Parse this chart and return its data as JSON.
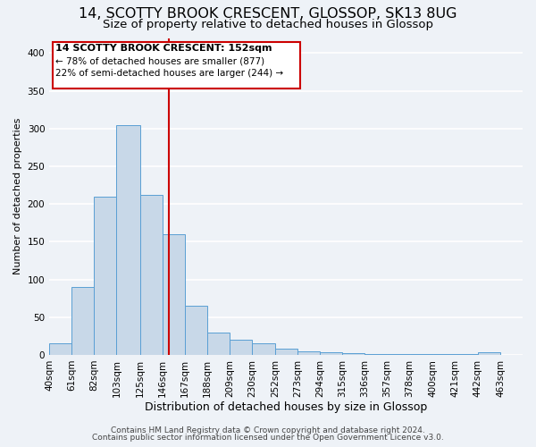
{
  "title": "14, SCOTTY BROOK CRESCENT, GLOSSOP, SK13 8UG",
  "subtitle": "Size of property relative to detached houses in Glossop",
  "xlabel": "Distribution of detached houses by size in Glossop",
  "ylabel": "Number of detached properties",
  "bar_left_edges": [
    40,
    61,
    82,
    103,
    125,
    146,
    167,
    188,
    209,
    230,
    252,
    273,
    294,
    315,
    336,
    357,
    378,
    400,
    421,
    442
  ],
  "bar_widths": [
    21,
    21,
    21,
    22,
    21,
    21,
    21,
    21,
    21,
    22,
    21,
    21,
    21,
    21,
    21,
    21,
    22,
    21,
    21,
    21
  ],
  "bar_heights": [
    15,
    90,
    210,
    305,
    212,
    160,
    65,
    30,
    20,
    15,
    8,
    5,
    3,
    2,
    1,
    1,
    1,
    1,
    1,
    3
  ],
  "bar_facecolor": "#c8d8e8",
  "bar_edgecolor": "#5a9fd4",
  "vline_x": 152,
  "vline_color": "#cc0000",
  "ylim": [
    0,
    420
  ],
  "yticks": [
    0,
    50,
    100,
    150,
    200,
    250,
    300,
    350,
    400
  ],
  "xtick_labels": [
    "40sqm",
    "61sqm",
    "82sqm",
    "103sqm",
    "125sqm",
    "146sqm",
    "167sqm",
    "188sqm",
    "209sqm",
    "230sqm",
    "252sqm",
    "273sqm",
    "294sqm",
    "315sqm",
    "336sqm",
    "357sqm",
    "378sqm",
    "400sqm",
    "421sqm",
    "442sqm",
    "463sqm"
  ],
  "xtick_positions": [
    40,
    61,
    82,
    103,
    125,
    146,
    167,
    188,
    209,
    230,
    252,
    273,
    294,
    315,
    336,
    357,
    378,
    400,
    421,
    442,
    463
  ],
  "annotation_title": "14 SCOTTY BROOK CRESCENT: 152sqm",
  "annotation_line1": "← 78% of detached houses are smaller (877)",
  "annotation_line2": "22% of semi-detached houses are larger (244) →",
  "annotation_box_color": "#cc0000",
  "footer1": "Contains HM Land Registry data © Crown copyright and database right 2024.",
  "footer2": "Contains public sector information licensed under the Open Government Licence v3.0.",
  "bg_color": "#eef2f7",
  "grid_color": "#ffffff",
  "title_fontsize": 11.5,
  "subtitle_fontsize": 9.5,
  "xlabel_fontsize": 9,
  "ylabel_fontsize": 8,
  "tick_fontsize": 7.5,
  "footer_fontsize": 6.5,
  "ann_title_fontsize": 8,
  "ann_text_fontsize": 7.5
}
